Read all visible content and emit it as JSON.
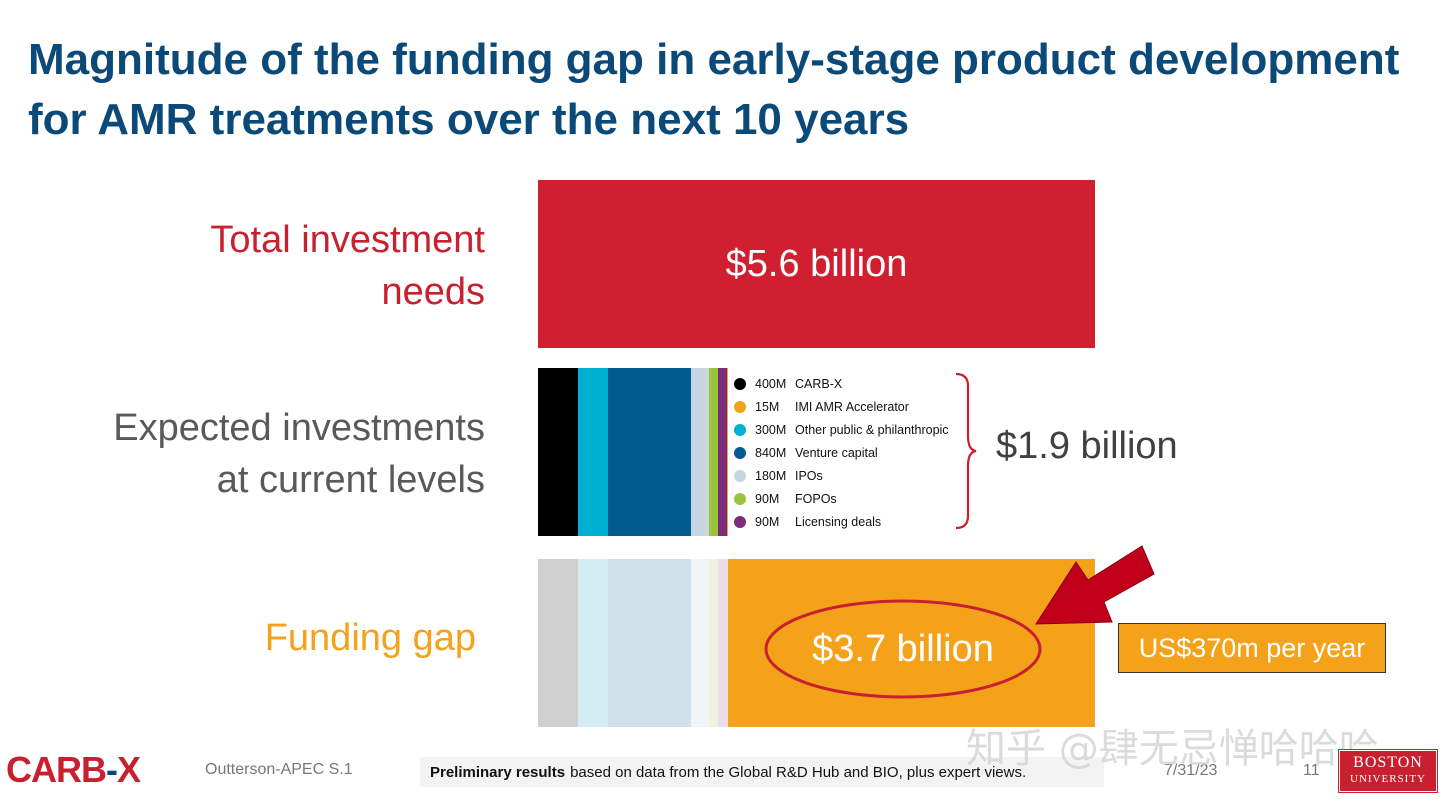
{
  "slide": {
    "title_line1": "Magnitude of the funding gap in early-stage product development",
    "title_line2": "for AMR treatments over the next 10 years"
  },
  "chart_data": {
    "type": "bar",
    "unit": "USD",
    "rows": [
      {
        "label_line1": "Total investment",
        "label_line2": "needs",
        "value_text": "$5.6 billion",
        "value_millions": 5600,
        "color": "#d01f30"
      },
      {
        "label_line1": "Expected investments",
        "label_line2": "at current levels",
        "value_text": "$1.9 billion",
        "value_millions": 1915
      },
      {
        "label_line1": "Funding gap",
        "value_text": "$3.7 billion",
        "value_millions": 3685,
        "color": "#f5a21b"
      }
    ],
    "segments": [
      {
        "value_text": "400M",
        "name": "CARB-X",
        "value_millions": 400,
        "color": "#000000",
        "faded": "#cfcfcf"
      },
      {
        "value_text": "15M",
        "name": "IMI AMR Accelerator",
        "value_millions": 15,
        "color": "#f5a21b",
        "faded": "#f7e1b5"
      },
      {
        "value_text": "300M",
        "name": "Other public & philanthropic",
        "value_millions": 300,
        "color": "#00b0d0",
        "faded": "#d2eef3"
      },
      {
        "value_text": "840M",
        "name": "Venture capital",
        "value_millions": 840,
        "color": "#005c8f",
        "faded": "#d0e0ea"
      },
      {
        "value_text": "180M",
        "name": "IPOs",
        "value_millions": 180,
        "color": "#c7d7e2",
        "faded": "#f1f4f7"
      },
      {
        "value_text": "90M",
        "name": "FOPOs",
        "value_millions": 90,
        "color": "#99c43c",
        "faded": "#eef4dc"
      },
      {
        "value_text": "90M",
        "name": "Licensing deals",
        "value_millions": 90,
        "color": "#7b2c7b",
        "faded": "#ebdcea"
      }
    ],
    "annual_gap_text": "US$370m per year"
  },
  "footer": {
    "logo_left": "CARB",
    "logo_dash": "-",
    "logo_right": "X",
    "source": "Outterson-APEC S.1",
    "note_bold": "Preliminary results",
    "note_rest": "based on data from the Global R&D Hub and BIO, plus expert views.",
    "date": "7/31/23",
    "page": "11",
    "watermark": "知乎 @肆无忌惮哈哈哈",
    "bu_line1": "BOSTON",
    "bu_line2": "UNIVERSITY"
  }
}
